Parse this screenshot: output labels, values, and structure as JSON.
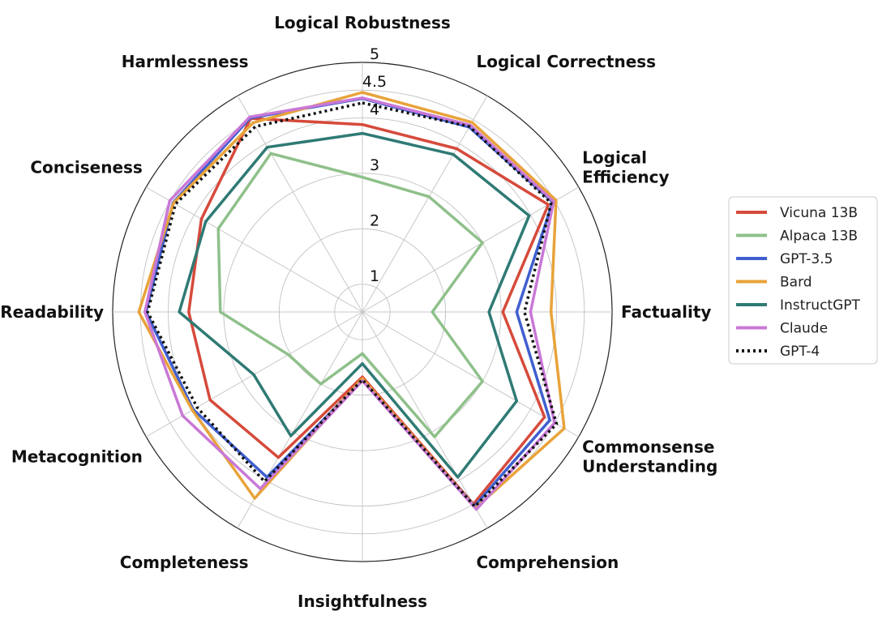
{
  "chart_data": {
    "type": "radar",
    "axes": [
      [
        "Logical Robustness"
      ],
      [
        "Logical Correctness"
      ],
      [
        "Logical",
        "Efficiency"
      ],
      [
        "Factuality"
      ],
      [
        "Commonsense",
        "Understanding"
      ],
      [
        "Comprehension"
      ],
      [
        "Insightfulness"
      ],
      [
        "Completeness"
      ],
      [
        "Metacognition"
      ],
      [
        "Readability"
      ],
      [
        "Conciseness"
      ],
      [
        "Harmlessness"
      ]
    ],
    "radial_ticks": [
      1,
      2,
      3,
      4,
      4.5,
      5
    ],
    "rlim": [
      0.5,
      5
    ],
    "grid": true,
    "legend_position": "right",
    "series": [
      {
        "name": "Vicuna 13B",
        "color": "#d64a3b",
        "style": "solid",
        "values": [
          3.88,
          3.9,
          4.37,
          3.03,
          4.29,
          4.5,
          1.67,
          3.53,
          3.67,
          3.63,
          3.85,
          4.53
        ]
      },
      {
        "name": "Alpaca 13B",
        "color": "#8fc08a",
        "style": "solid",
        "values": [
          2.93,
          2.9,
          3.0,
          1.76,
          3.0,
          3.1,
          1.25,
          2.0,
          2.04,
          3.06,
          3.5,
          3.8
        ]
      },
      {
        "name": "GPT-3.5",
        "color": "#3f5fcf",
        "style": "solid",
        "values": [
          4.35,
          4.35,
          4.46,
          3.28,
          4.4,
          4.54,
          1.73,
          3.94,
          4.02,
          4.4,
          4.44,
          4.54
        ]
      },
      {
        "name": "Bard",
        "color": "#e8a33a",
        "style": "solid",
        "values": [
          4.46,
          4.45,
          4.53,
          3.9,
          4.7,
          4.58,
          1.7,
          4.38,
          4.04,
          4.53,
          4.43,
          4.44
        ]
      },
      {
        "name": "InstructGPT",
        "color": "#2f7a74",
        "style": "solid",
        "values": [
          3.72,
          3.78,
          3.97,
          2.78,
          3.71,
          3.94,
          1.43,
          3.08,
          2.76,
          3.8,
          3.76,
          3.93
        ]
      },
      {
        "name": "Claude",
        "color": "#c978d6",
        "style": "solid",
        "values": [
          4.36,
          4.39,
          4.48,
          3.53,
          4.5,
          4.61,
          1.74,
          4.18,
          4.24,
          4.42,
          4.51,
          4.56
        ]
      },
      {
        "name": "GPT-4",
        "color": "#111111",
        "style": "dotted",
        "values": [
          4.27,
          4.36,
          4.43,
          3.42,
          4.54,
          4.55,
          1.72,
          4.03,
          3.94,
          4.37,
          4.39,
          4.36
        ]
      }
    ]
  }
}
